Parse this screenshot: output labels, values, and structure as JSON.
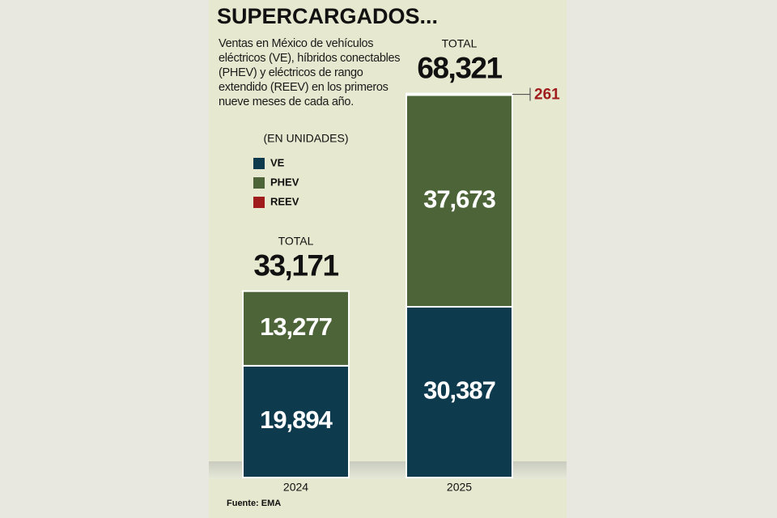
{
  "chart_data": {
    "type": "bar",
    "stacked": true,
    "title": "SUPERCARGADOS...",
    "subtitle": "Ventas en México de vehículos eléctricos (VE), híbridos conectables (PHEV) y eléctricos de rango extendido (REEV) en los primeros nueve meses de cada año.",
    "unit_note": "(EN UNIDADES)",
    "source": "Fuente: EMA",
    "categories": [
      "2024",
      "2025"
    ],
    "series": [
      {
        "name": "VE",
        "color": "#0e3a4e",
        "values": [
          19894,
          30387
        ],
        "value_labels": [
          "19,894",
          "30,387"
        ]
      },
      {
        "name": "PHEV",
        "color": "#4d6438",
        "values": [
          13277,
          37673
        ],
        "value_labels": [
          "13,277",
          "37,673"
        ]
      },
      {
        "name": "REEV",
        "color": "#a01c1c",
        "values": [
          0,
          261
        ],
        "value_labels": [
          null,
          "261"
        ]
      }
    ],
    "totals_label": "TOTAL",
    "totals": [
      "33,171",
      "68,321"
    ],
    "ylim": [
      0,
      70000
    ]
  }
}
